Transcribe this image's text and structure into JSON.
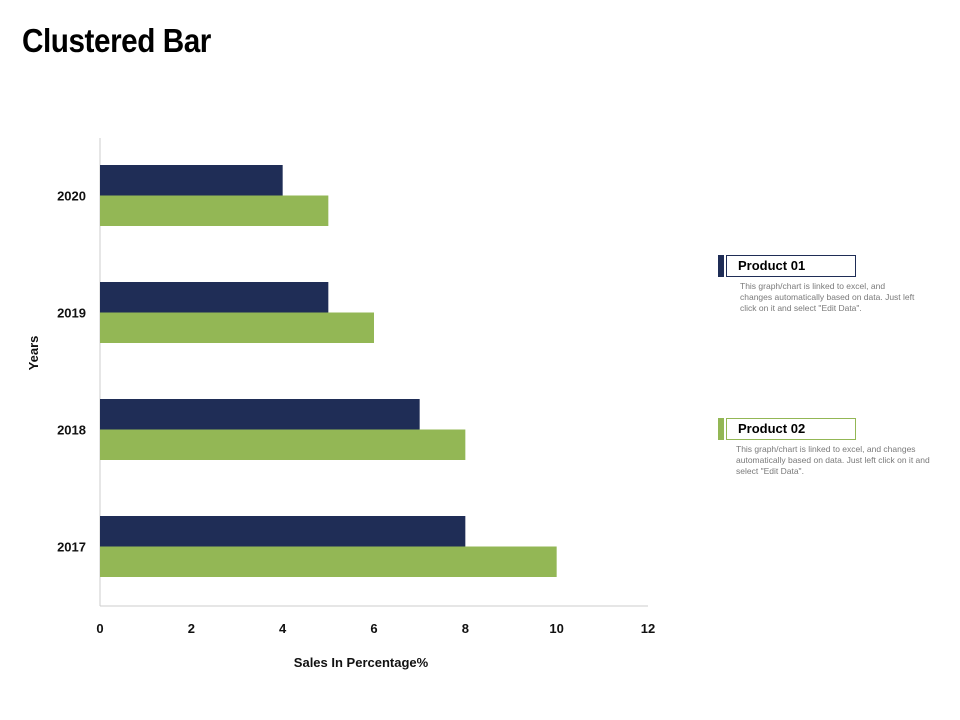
{
  "title": "Clustered Bar",
  "colors": {
    "product01": "#1f2d56",
    "product02": "#93b755",
    "axis": "#cccccc"
  },
  "legend": [
    {
      "name": "Product 01",
      "description": "This graph/chart is linked to excel, and changes automatically based on data. Just left click on it and select \"Edit Data\"."
    },
    {
      "name": "Product 02",
      "description": "This graph/chart is linked to excel, and changes automatically based on data. Just left click on it and select \"Edit Data\"."
    }
  ],
  "chart_data": {
    "type": "bar",
    "orientation": "horizontal",
    "categories": [
      "2020",
      "2019",
      "2018",
      "2017"
    ],
    "series": [
      {
        "name": "Product 01",
        "values": [
          4,
          5,
          7,
          8
        ]
      },
      {
        "name": "Product 02",
        "values": [
          5,
          6,
          8,
          10
        ]
      }
    ],
    "xlabel": "Sales In Percentage%",
    "ylabel": "Years",
    "xlim": [
      0,
      12
    ],
    "xticks": [
      0,
      2,
      4,
      6,
      8,
      10,
      12
    ],
    "legend_position": "right"
  }
}
